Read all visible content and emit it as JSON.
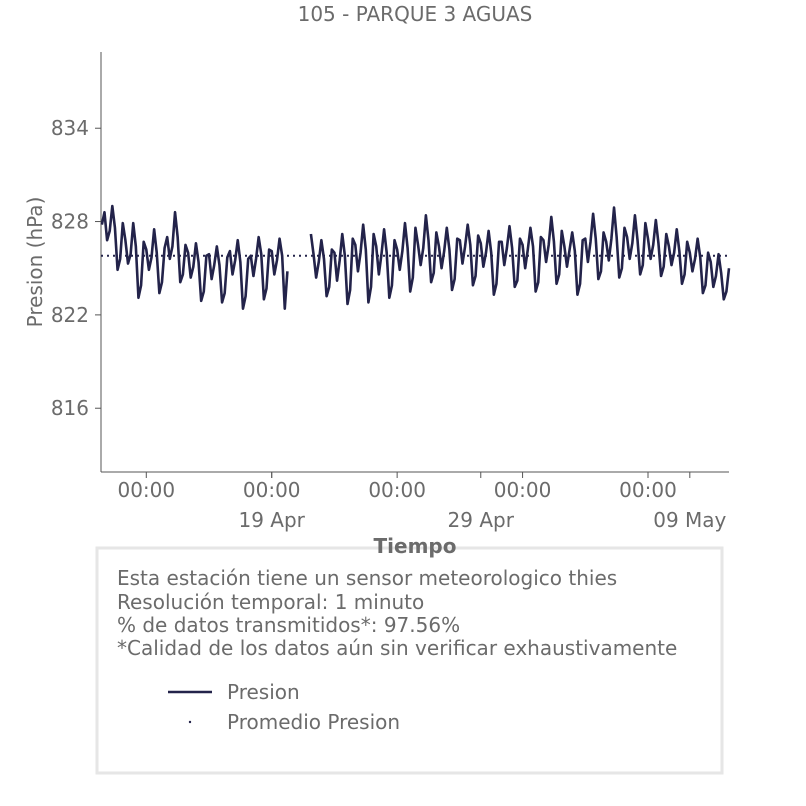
{
  "chart_data": {
    "type": "line",
    "title": "105 - PARQUE 3 AGUAS",
    "xlabel": "Tiempo",
    "ylabel": "Presion (hPa)",
    "ylim": [
      811.9,
      838.9
    ],
    "yticks": [
      816,
      822,
      828,
      834
    ],
    "xlim": [
      "10 Apr 20:00",
      "10 May 21:00"
    ],
    "xticks": [
      {
        "value": "13 Apr 00:00",
        "label": "00:00"
      },
      {
        "value": "19 Apr 00:00",
        "label": "00:00"
      },
      {
        "value": "25 Apr 00:00",
        "label": "00:00"
      },
      {
        "value": "01 May 00:00",
        "label": "00:00"
      },
      {
        "value": "07 May 00:00",
        "label": "00:00"
      }
    ],
    "xticks_dates": [
      {
        "value": "19 Apr 00:00",
        "label": "19 Apr"
      },
      {
        "value": "29 Apr 00:00",
        "label": "29 Apr"
      },
      {
        "value": "09 May 00:00",
        "label": "09 May"
      }
    ],
    "x": [
      "10 Apr 21:00",
      "11 Apr 00:00",
      "11 Apr 03:00",
      "11 Apr 06:00",
      "11 Apr 09:00",
      "11 Apr 12:00",
      "11 Apr 15:00",
      "11 Apr 18:00",
      "11 Apr 21:00",
      "12 Apr 00:00",
      "12 Apr 03:00",
      "12 Apr 06:00",
      "12 Apr 09:00",
      "12 Apr 12:00",
      "12 Apr 15:00",
      "12 Apr 18:00",
      "12 Apr 21:00",
      "13 Apr 00:00",
      "13 Apr 03:00",
      "13 Apr 06:00",
      "13 Apr 09:00",
      "13 Apr 12:00",
      "13 Apr 15:00",
      "13 Apr 18:00",
      "13 Apr 21:00",
      "14 Apr 00:00",
      "14 Apr 03:00",
      "14 Apr 06:00",
      "14 Apr 09:00",
      "14 Apr 12:00",
      "14 Apr 15:00",
      "14 Apr 18:00",
      "14 Apr 21:00",
      "15 Apr 00:00",
      "15 Apr 03:00",
      "15 Apr 06:00",
      "15 Apr 09:00",
      "15 Apr 12:00",
      "15 Apr 15:00",
      "15 Apr 18:00",
      "15 Apr 21:00",
      "16 Apr 00:00",
      "16 Apr 03:00",
      "16 Apr 06:00",
      "16 Apr 09:00",
      "16 Apr 12:00",
      "16 Apr 15:00",
      "16 Apr 18:00",
      "16 Apr 21:00",
      "17 Apr 00:00",
      "17 Apr 03:00",
      "17 Apr 06:00",
      "17 Apr 09:00",
      "17 Apr 12:00",
      "17 Apr 15:00",
      "17 Apr 18:00",
      "17 Apr 21:00",
      "18 Apr 00:00",
      "18 Apr 03:00",
      "18 Apr 06:00",
      "18 Apr 09:00",
      "18 Apr 12:00",
      "18 Apr 15:00",
      "18 Apr 18:00",
      "18 Apr 21:00",
      "19 Apr 00:00",
      "19 Apr 03:00",
      "19 Apr 06:00",
      "19 Apr 09:00",
      "19 Apr 12:00",
      "19 Apr 15:00",
      "19 Apr 18:00",
      "19 Apr 21:00",
      "20 Apr 00:00",
      "20 Apr 03:00",
      "20 Apr 06:00",
      "20 Apr 09:00",
      "20 Apr 12:00",
      "20 Apr 15:00",
      "20 Apr 18:00",
      "20 Apr 21:00",
      "21 Apr 00:00",
      "21 Apr 03:00",
      "21 Apr 06:00",
      "21 Apr 09:00",
      "21 Apr 12:00",
      "21 Apr 15:00",
      "21 Apr 18:00",
      "21 Apr 21:00",
      "22 Apr 00:00",
      "22 Apr 03:00",
      "22 Apr 06:00",
      "22 Apr 09:00",
      "22 Apr 12:00",
      "22 Apr 15:00",
      "22 Apr 18:00",
      "22 Apr 21:00",
      "23 Apr 00:00",
      "23 Apr 03:00",
      "23 Apr 06:00",
      "23 Apr 09:00",
      "23 Apr 12:00",
      "23 Apr 15:00",
      "23 Apr 18:00",
      "23 Apr 21:00",
      "24 Apr 00:00",
      "24 Apr 03:00",
      "24 Apr 06:00",
      "24 Apr 09:00",
      "24 Apr 12:00",
      "24 Apr 15:00",
      "24 Apr 18:00",
      "24 Apr 21:00",
      "25 Apr 00:00",
      "25 Apr 03:00",
      "25 Apr 06:00",
      "25 Apr 09:00",
      "25 Apr 12:00",
      "25 Apr 15:00",
      "25 Apr 18:00",
      "25 Apr 21:00",
      "26 Apr 00:00",
      "26 Apr 03:00",
      "26 Apr 06:00",
      "26 Apr 09:00",
      "26 Apr 12:00",
      "26 Apr 15:00",
      "26 Apr 18:00",
      "26 Apr 21:00",
      "27 Apr 00:00",
      "27 Apr 03:00",
      "27 Apr 06:00",
      "27 Apr 09:00",
      "27 Apr 12:00",
      "27 Apr 15:00",
      "27 Apr 18:00",
      "27 Apr 21:00",
      "28 Apr 00:00",
      "28 Apr 03:00",
      "28 Apr 06:00",
      "28 Apr 09:00",
      "28 Apr 12:00",
      "28 Apr 15:00",
      "28 Apr 18:00",
      "28 Apr 21:00",
      "29 Apr 00:00",
      "29 Apr 03:00",
      "29 Apr 06:00",
      "29 Apr 09:00",
      "29 Apr 12:00",
      "29 Apr 15:00",
      "29 Apr 18:00",
      "29 Apr 21:00",
      "30 Apr 00:00",
      "30 Apr 03:00",
      "30 Apr 06:00",
      "30 Apr 09:00",
      "30 Apr 12:00",
      "30 Apr 15:00",
      "30 Apr 18:00",
      "30 Apr 21:00",
      "01 May 00:00",
      "01 May 03:00",
      "01 May 06:00",
      "01 May 09:00",
      "01 May 12:00",
      "01 May 15:00",
      "01 May 18:00",
      "01 May 21:00",
      "02 May 00:00",
      "02 May 03:00",
      "02 May 06:00",
      "02 May 09:00",
      "02 May 12:00",
      "02 May 15:00",
      "02 May 18:00",
      "02 May 21:00",
      "03 May 00:00",
      "03 May 03:00",
      "03 May 06:00",
      "03 May 09:00",
      "03 May 12:00",
      "03 May 15:00",
      "03 May 18:00",
      "03 May 21:00",
      "04 May 00:00",
      "04 May 03:00",
      "04 May 06:00",
      "04 May 09:00",
      "04 May 12:00",
      "04 May 15:00",
      "04 May 18:00",
      "04 May 21:00",
      "05 May 00:00",
      "05 May 03:00",
      "05 May 06:00",
      "05 May 09:00",
      "05 May 12:00",
      "05 May 15:00",
      "05 May 18:00",
      "05 May 21:00",
      "06 May 00:00",
      "06 May 03:00",
      "06 May 06:00",
      "06 May 09:00",
      "06 May 12:00",
      "06 May 15:00",
      "06 May 18:00",
      "06 May 21:00",
      "07 May 00:00",
      "07 May 03:00",
      "07 May 06:00",
      "07 May 09:00",
      "07 May 12:00",
      "07 May 15:00",
      "07 May 18:00",
      "07 May 21:00",
      "08 May 00:00",
      "08 May 03:00",
      "08 May 06:00",
      "08 May 09:00",
      "08 May 12:00",
      "08 May 15:00",
      "08 May 18:00",
      "08 May 21:00",
      "09 May 00:00",
      "09 May 03:00",
      "09 May 06:00",
      "09 May 09:00",
      "09 May 12:00",
      "09 May 15:00",
      "09 May 18:00",
      "09 May 21:00",
      "10 May 00:00",
      "10 May 03:00",
      "10 May 06:00",
      "10 May 09:00",
      "10 May 12:00",
      "10 May 15:00",
      "10 May 18:00",
      "10 May 21:00"
    ],
    "series": [
      {
        "name": "Presion",
        "color": "#23234a",
        "values": [
          827.8,
          828.6,
          826.8,
          827.4,
          829.0,
          827.6,
          824.9,
          825.6,
          827.9,
          826.8,
          825.3,
          825.9,
          827.9,
          826.4,
          823.1,
          823.9,
          826.7,
          826.2,
          824.9,
          825.7,
          827.5,
          826.0,
          823.4,
          824.1,
          826.3,
          827.0,
          825.6,
          826.4,
          828.6,
          827.0,
          824.1,
          824.6,
          826.5,
          826.0,
          824.4,
          825.1,
          826.6,
          825.4,
          822.9,
          823.5,
          825.8,
          825.9,
          824.3,
          825.2,
          826.4,
          825.2,
          822.8,
          823.4,
          825.7,
          826.1,
          824.6,
          825.5,
          826.8,
          825.4,
          822.4,
          823.2,
          825.6,
          825.8,
          824.5,
          825.6,
          827.0,
          825.9,
          823.0,
          823.7,
          826.2,
          826.1,
          824.6,
          825.5,
          826.9,
          825.8,
          822.4,
          824.8,
          null,
          null,
          null,
          null,
          null,
          null,
          null,
          null,
          827.2,
          825.9,
          824.4,
          825.4,
          826.8,
          825.6,
          823.2,
          823.8,
          826.2,
          826.0,
          824.2,
          825.5,
          827.2,
          825.8,
          822.7,
          823.6,
          826.9,
          826.5,
          824.8,
          826.0,
          827.8,
          826.2,
          822.8,
          823.8,
          827.2,
          826.4,
          824.6,
          825.9,
          827.5,
          826.0,
          823.1,
          823.9,
          826.8,
          826.2,
          824.9,
          826.1,
          827.9,
          826.3,
          823.5,
          824.4,
          827.6,
          826.5,
          825.2,
          826.3,
          828.4,
          826.8,
          824.1,
          824.7,
          827.3,
          826.4,
          825.0,
          826.1,
          827.6,
          826.2,
          823.6,
          824.3,
          826.9,
          826.8,
          825.3,
          826.4,
          827.8,
          826.5,
          823.9,
          824.5,
          827.1,
          826.6,
          825.1,
          826.0,
          827.4,
          826.0,
          823.3,
          824.0,
          826.7,
          826.7,
          825.2,
          826.3,
          827.7,
          826.3,
          823.8,
          824.2,
          826.9,
          826.5,
          825.0,
          826.2,
          827.6,
          826.4,
          823.5,
          824.1,
          827.0,
          826.8,
          825.4,
          826.5,
          828.3,
          826.7,
          824.0,
          824.6,
          827.4,
          826.4,
          825.1,
          826.2,
          827.3,
          826.1,
          823.3,
          824.0,
          826.8,
          826.9,
          825.4,
          826.7,
          828.5,
          826.9,
          824.3,
          824.8,
          827.3,
          826.7,
          825.5,
          826.9,
          828.9,
          827.0,
          824.4,
          825.0,
          827.6,
          827.0,
          825.6,
          826.6,
          828.4,
          826.8,
          824.6,
          825.2,
          827.9,
          826.9,
          825.6,
          826.5,
          828.1,
          826.6,
          824.5,
          825.1,
          827.2,
          826.4,
          825.2,
          826.0,
          827.5,
          826.1,
          824.0,
          824.6,
          826.7,
          826.0,
          824.8,
          825.6,
          826.9,
          825.7,
          823.4,
          823.9,
          826.0,
          825.4,
          823.8,
          824.5,
          825.9,
          824.7,
          823.0,
          823.5,
          825.0
        ]
      },
      {
        "name": "Promedio Presion",
        "color": "#23234a",
        "style": "dotted",
        "value": 825.8
      }
    ],
    "info": [
      "Esta estación tiene un sensor meteorologico thies",
      "Resolución temporal: 1 minuto",
      "% de datos transmitidos*: 97.56%",
      "*Calidad de los datos aún sin verificar exhaustivamente"
    ]
  }
}
